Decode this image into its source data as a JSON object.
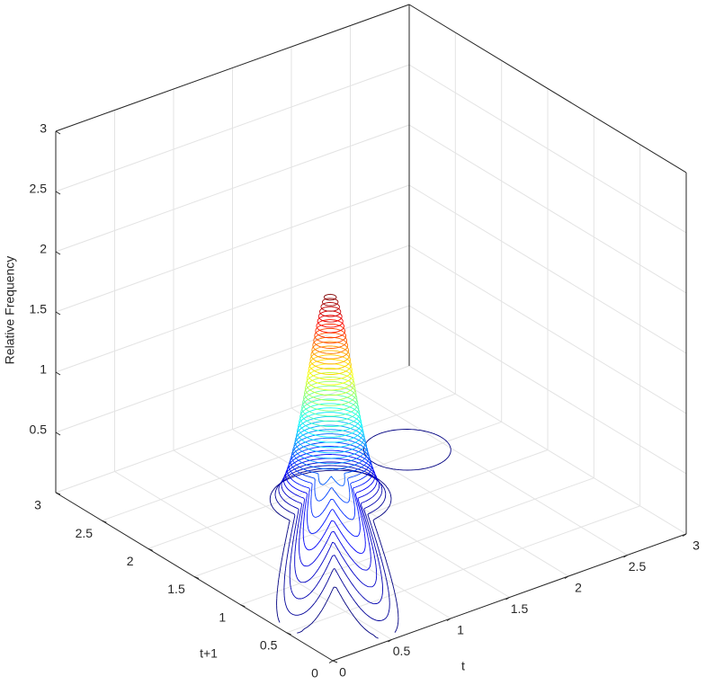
{
  "chart_data": {
    "type": "contour3",
    "xlabel": "t",
    "ylabel": "t+1",
    "zlabel": "Relative Frequency",
    "xlim": [
      0,
      3
    ],
    "ylim": [
      0,
      3
    ],
    "zlim": [
      0,
      3
    ],
    "xticks": [
      0,
      0.5,
      1,
      1.5,
      2,
      2.5,
      3
    ],
    "yticks": [
      0,
      0.5,
      1,
      1.5,
      2,
      2.5,
      3
    ],
    "zticks": [
      0.5,
      1,
      1.5,
      2,
      2.5,
      3
    ],
    "levels": [
      0.05,
      0.09,
      0.13,
      0.17,
      0.21,
      0.25,
      0.29,
      0.33,
      0.37,
      0.41,
      0.45,
      0.49,
      0.53,
      0.57,
      0.61,
      0.65,
      0.69,
      0.73,
      0.77,
      0.81,
      0.85,
      0.89,
      0.93,
      0.97,
      1.01,
      1.05,
      1.09,
      1.13,
      1.17,
      1.21,
      1.25,
      1.29,
      1.33,
      1.37,
      1.41,
      1.45,
      1.49,
      1.53,
      1.57,
      1.61,
      1.65,
      1.69,
      1.73
    ],
    "colormap": "jet",
    "grid": true
  }
}
